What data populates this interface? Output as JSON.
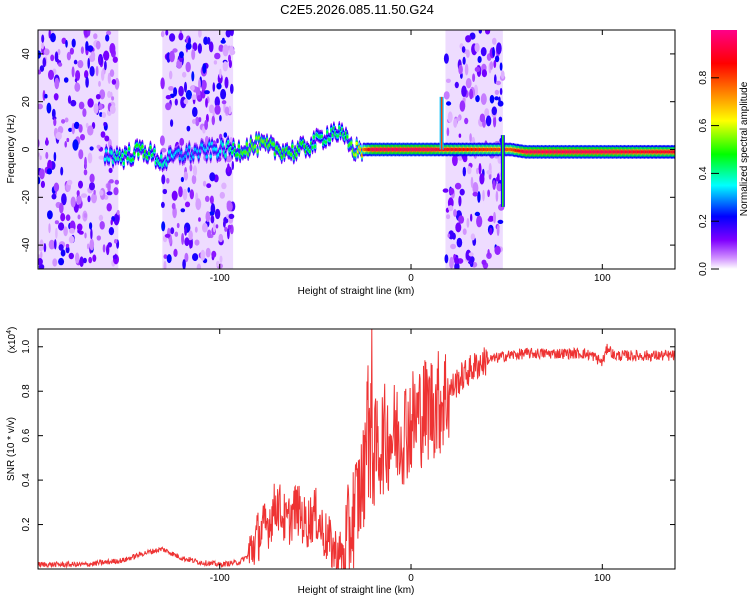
{
  "figure_title": "C2E5.2026.085.11.50.G24",
  "chart_data": [
    {
      "type": "heatmap",
      "title": "C2E5.2026.085.11.50.G24",
      "xlabel": "Height of straight line (km)",
      "ylabel": "Frequency (Hz)",
      "xlim": [
        -195,
        138
      ],
      "ylim": [
        -50,
        50
      ],
      "x_ticks": [
        -100,
        0,
        100
      ],
      "y_ticks": [
        -40,
        -20,
        0,
        20,
        40
      ],
      "x_tick_labels": [
        "-100",
        "0",
        "100"
      ],
      "y_tick_labels": [
        "-40",
        "-20",
        "0",
        "20",
        "40"
      ],
      "colorbar": {
        "label": "Normalized spectral amplitude",
        "range": [
          0,
          1
        ],
        "ticks": [
          0.0,
          0.2,
          0.4,
          0.6,
          0.8
        ],
        "tick_labels": [
          "0.0",
          "0.2",
          "0.4",
          "0.6",
          "0.8"
        ],
        "colors": [
          "#ffffff",
          "#cc88ff",
          "#8000ff",
          "#0000ff",
          "#00ffff",
          "#00ff00",
          "#ffff00",
          "#ff8000",
          "#ff0000",
          "#ff0088"
        ]
      },
      "noise_regions_km": [
        [
          -195,
          -153
        ],
        [
          -130,
          -93
        ],
        [
          18,
          48
        ]
      ],
      "ridge": {
        "x": [
          -160,
          -150,
          -140,
          -130,
          -120,
          -100,
          -90,
          -80,
          -70,
          -60,
          -50,
          -40,
          -35,
          -30,
          -20,
          -10,
          0,
          10,
          15,
          52,
          60,
          80,
          100,
          120,
          138
        ],
        "freq": [
          -2,
          -3,
          0,
          -5,
          -2,
          0,
          0,
          2,
          0,
          -1,
          3,
          8,
          5,
          0,
          0,
          0,
          0,
          0,
          0,
          0,
          -1,
          -1,
          -1,
          -1,
          -1
        ],
        "amp": [
          0.35,
          0.45,
          0.5,
          0.4,
          0.3,
          0.35,
          0.5,
          0.55,
          0.5,
          0.5,
          0.45,
          0.45,
          0.45,
          0.55,
          0.95,
          0.95,
          0.95,
          0.95,
          0.9,
          0.8,
          0.95,
          0.95,
          0.95,
          0.9,
          0.9
        ]
      }
    },
    {
      "type": "line",
      "xlabel": "Height of straight line (km)",
      "ylabel": "SNR (10 * v/v)",
      "y_multiplier": "(x10",
      "y_multiplier_exp": "4",
      "y_multiplier_close": ")",
      "xlim": [
        -195,
        138
      ],
      "ylim": [
        0,
        1.08
      ],
      "x_ticks": [
        -100,
        0,
        100
      ],
      "y_ticks": [
        0.2,
        0.4,
        0.6,
        0.8,
        1.0
      ],
      "x_tick_labels": [
        "-100",
        "0",
        "100"
      ],
      "y_tick_labels": [
        "0.2",
        "0.4",
        "0.6",
        "0.8",
        "1.0"
      ],
      "color": "#ee3333",
      "series": [
        {
          "name": "SNR",
          "x": [
            -195,
            -170,
            -150,
            -140,
            -130,
            -120,
            -110,
            -100,
            -90,
            -85,
            -80,
            -75,
            -70,
            -65,
            -60,
            -55,
            -50,
            -45,
            -40,
            -35,
            -30,
            -25,
            -22,
            -20,
            -15,
            -10,
            -5,
            0,
            5,
            10,
            15,
            20,
            25,
            30,
            35,
            40,
            50,
            60,
            70,
            80,
            90,
            95,
            100,
            103,
            106,
            110,
            120,
            138
          ],
          "y": [
            0.02,
            0.02,
            0.04,
            0.07,
            0.09,
            0.05,
            0.03,
            0.02,
            0.03,
            0.06,
            0.15,
            0.2,
            0.3,
            0.2,
            0.28,
            0.2,
            0.25,
            0.15,
            0.08,
            0.05,
            0.25,
            0.4,
            0.55,
            0.5,
            0.58,
            0.6,
            0.62,
            0.66,
            0.7,
            0.73,
            0.75,
            0.8,
            0.85,
            0.89,
            0.92,
            0.94,
            0.96,
            0.97,
            0.97,
            0.97,
            0.97,
            0.96,
            0.93,
            1.0,
            0.96,
            0.96,
            0.96,
            0.96
          ]
        }
      ]
    }
  ]
}
